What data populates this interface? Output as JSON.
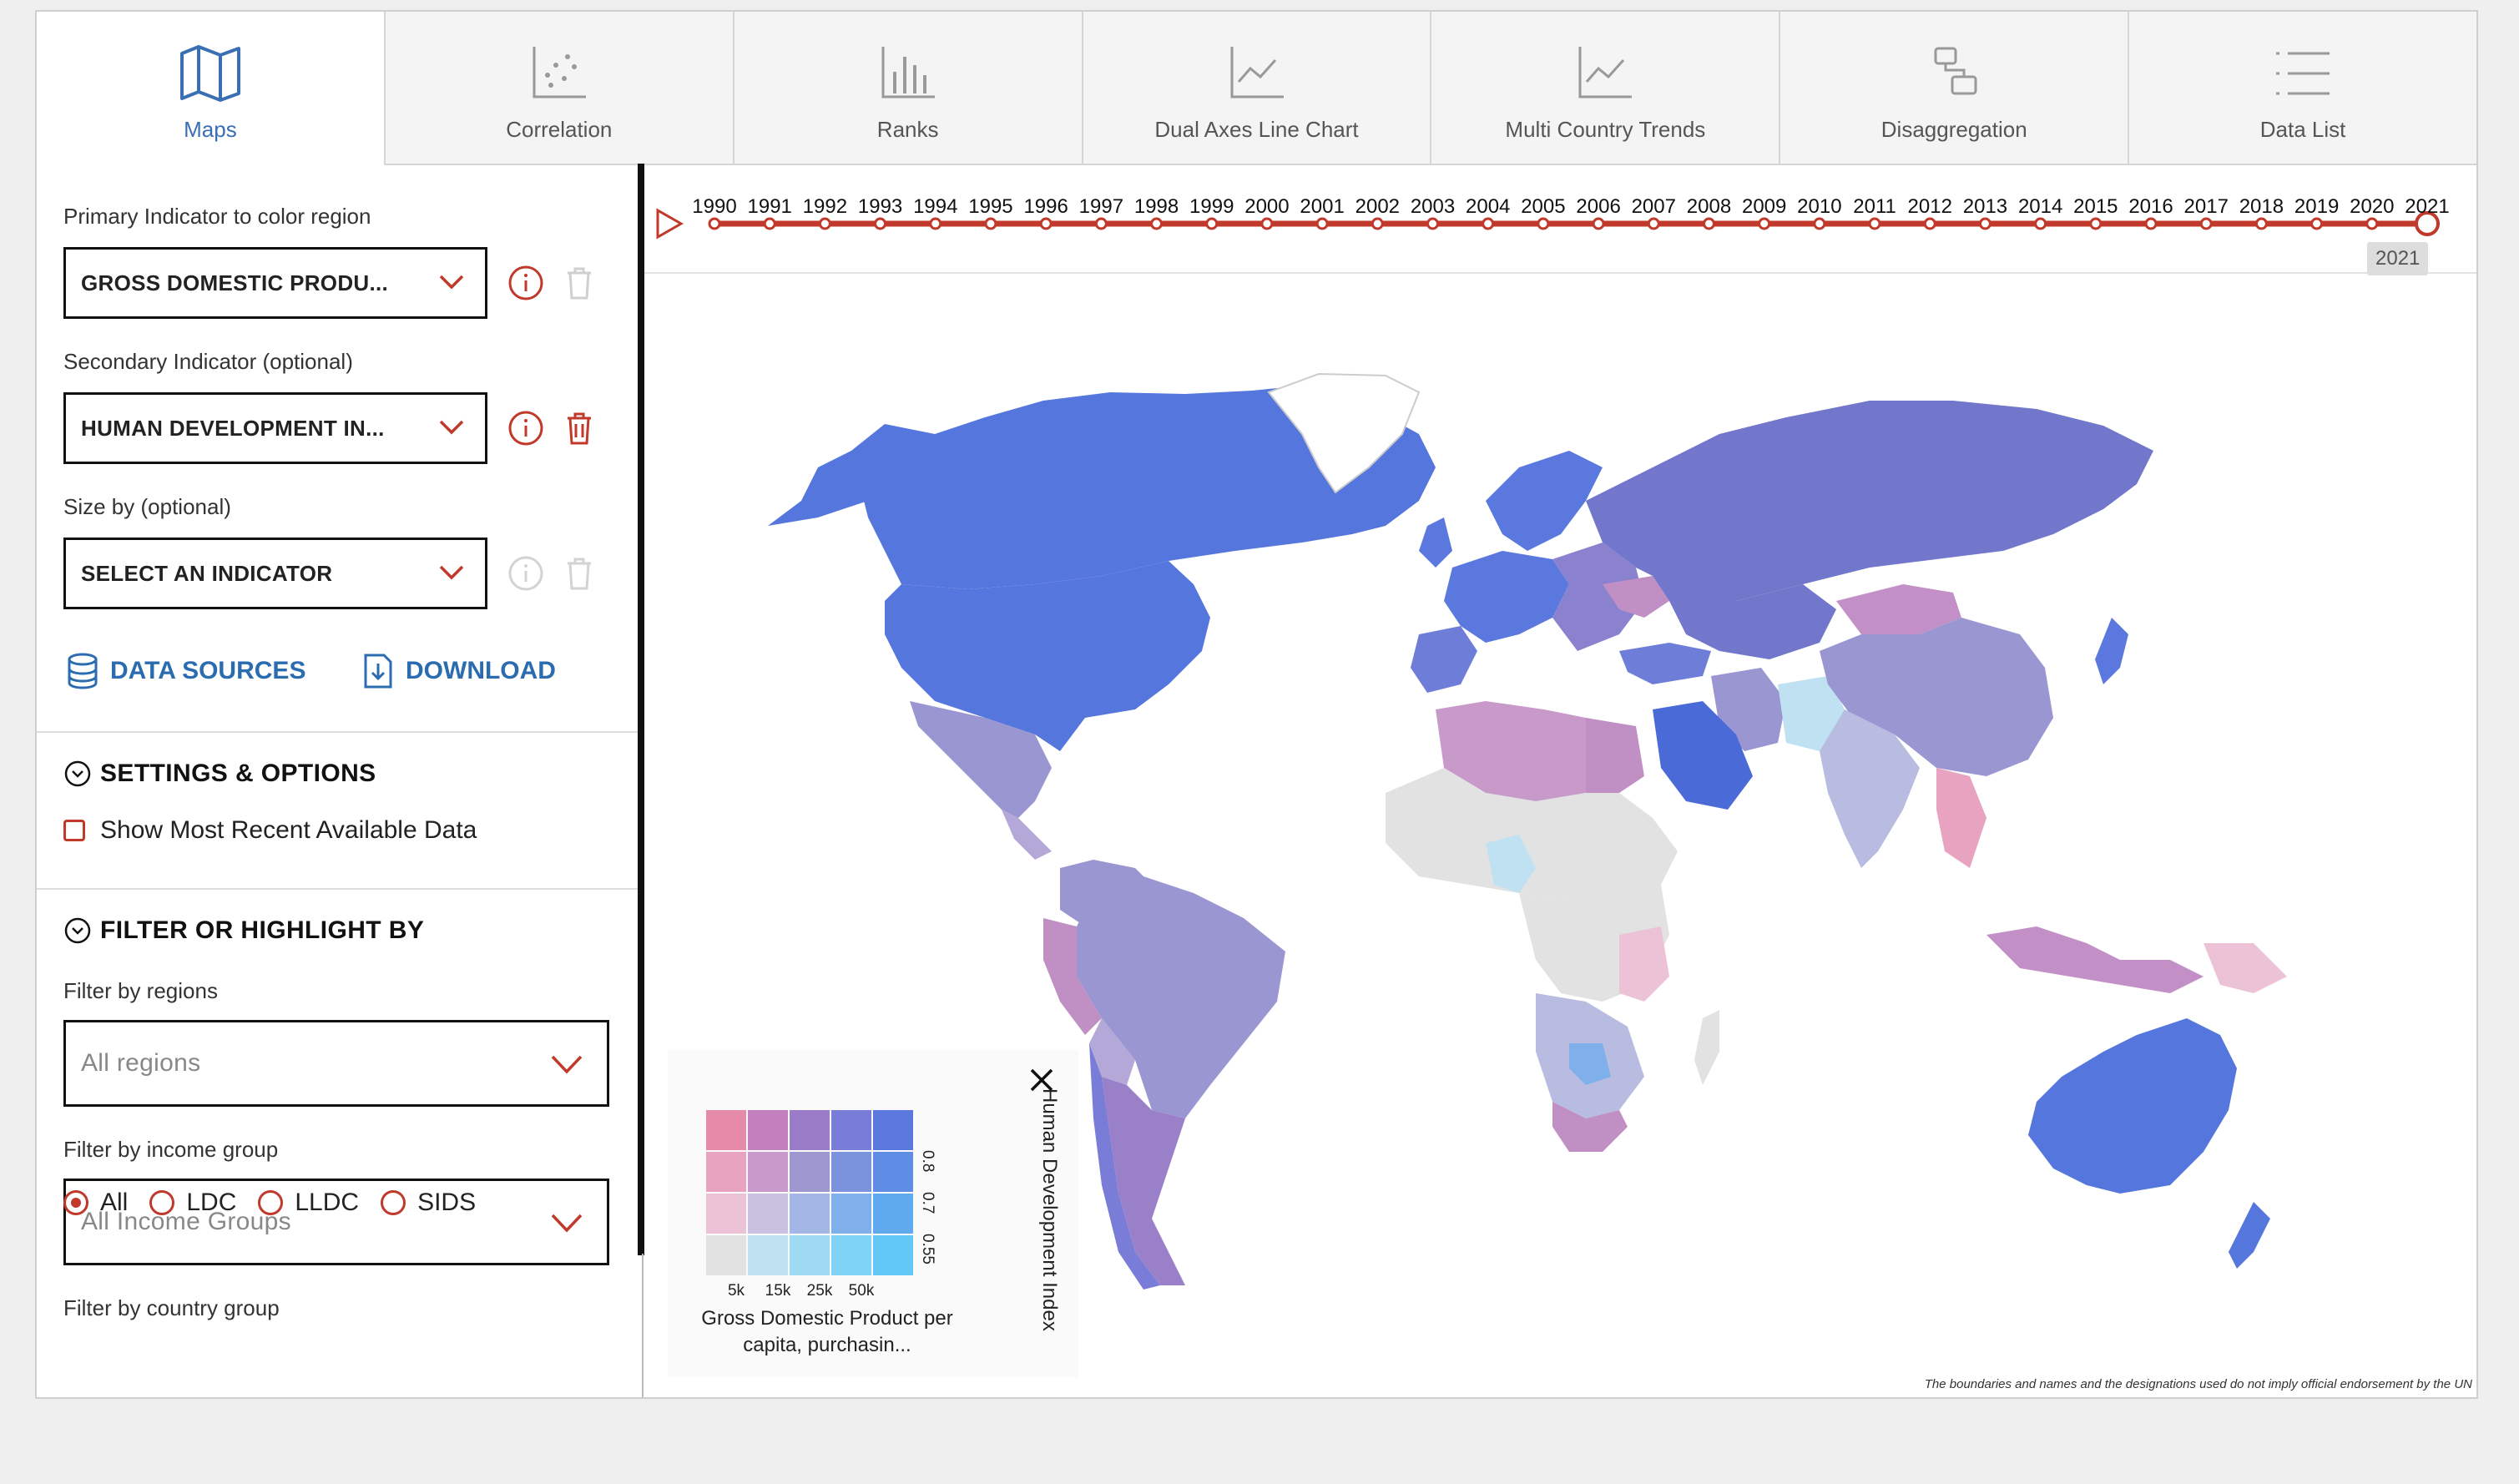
{
  "tabs": [
    {
      "label": "Maps",
      "icon": "map-icon",
      "active": true
    },
    {
      "label": "Correlation",
      "icon": "scatter-icon",
      "active": false
    },
    {
      "label": "Ranks",
      "icon": "bar-chart-icon",
      "active": false
    },
    {
      "label": "Dual Axes Line Chart",
      "icon": "line-chart-icon",
      "active": false
    },
    {
      "label": "Multi Country Trends",
      "icon": "line-chart-icon",
      "active": false
    },
    {
      "label": "Disaggregation",
      "icon": "disaggregation-icon",
      "active": false
    },
    {
      "label": "Data List",
      "icon": "list-icon",
      "active": false
    }
  ],
  "panel": {
    "primary": {
      "label": "Primary Indicator to color region",
      "value": "GROSS DOMESTIC PRODU..."
    },
    "secondary": {
      "label": "Secondary Indicator (optional)",
      "value": "HUMAN DEVELOPMENT IN..."
    },
    "size": {
      "label": "Size by (optional)",
      "value": "SELECT AN INDICATOR"
    },
    "data_sources": "DATA SOURCES",
    "download": "DOWNLOAD",
    "settings_title": "SETTINGS & OPTIONS",
    "show_recent": "Show Most Recent Available Data",
    "filter_title": "FILTER OR HIGHLIGHT BY",
    "regions_label": "Filter by regions",
    "regions_value": "All regions",
    "income_label": "Filter by income group",
    "income_value": "All Income Groups",
    "country_group_label": "Filter by country group",
    "country_groups": [
      {
        "label": "All",
        "selected": true
      },
      {
        "label": "LDC",
        "selected": false
      },
      {
        "label": "LLDC",
        "selected": false
      },
      {
        "label": "SIDS",
        "selected": false
      }
    ]
  },
  "timeline": {
    "years": [
      "1990",
      "1991",
      "1992",
      "1993",
      "1994",
      "1995",
      "1996",
      "1997",
      "1998",
      "1999",
      "2000",
      "2001",
      "2002",
      "2003",
      "2004",
      "2005",
      "2006",
      "2007",
      "2008",
      "2009",
      "2010",
      "2011",
      "2012",
      "2013",
      "2014",
      "2015",
      "2016",
      "2017",
      "2018",
      "2019",
      "2020",
      "2021"
    ],
    "selected": "2021",
    "color": "#c0392b"
  },
  "legend": {
    "y_title": "Human Development Index",
    "x_title": "Gross Domestic Product per capita, purchasin...",
    "x_ticks": [
      "5k",
      "15k",
      "25k",
      "50k"
    ],
    "y_ticks": [
      "0.55",
      "0.7",
      "0.8"
    ],
    "colors": [
      [
        "#e68aa9",
        "#c47fbf",
        "#9b7cc9",
        "#7a7dd8",
        "#5b78de"
      ],
      [
        "#e8a3c0",
        "#c79ac9",
        "#9f97d0",
        "#7b92dd",
        "#5f8de6"
      ],
      [
        "#ecc3d6",
        "#c9c1df",
        "#a4b6e6",
        "#7fb0ec",
        "#5fa9ef"
      ],
      [
        "#e2e2e2",
        "#bfe1f2",
        "#9edaf4",
        "#7fd3f5",
        "#62c8f5"
      ]
    ]
  },
  "disclaimer": "The boundaries and names and the designations used do not imply official endorsement by the UN"
}
